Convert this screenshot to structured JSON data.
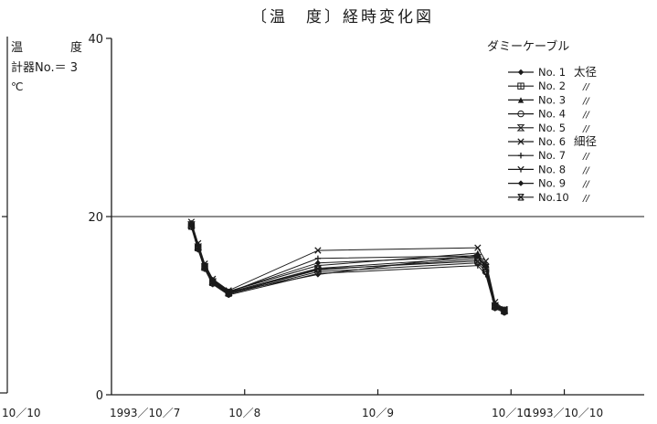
{
  "chart_data": {
    "type": "line",
    "title": "〔温　度〕経時変化図",
    "left_panel": {
      "label_lines": [
        "温　　　　度",
        "計器No.＝ 3",
        "℃"
      ],
      "bottom_tick": "10／10"
    },
    "yticks": [
      "40",
      "20",
      "0"
    ],
    "ylim": [
      0,
      40
    ],
    "x_tick_labels": [
      "1993／10／7",
      "10／8",
      "10／9",
      "10／10",
      "1993／10／10"
    ],
    "x_tick_values": [
      0,
      1,
      2,
      3,
      3.4
    ],
    "xlim": [
      0,
      4
    ],
    "reference_line_y": 20,
    "legend": {
      "title": "ダミーケーブル",
      "placement": "top-right",
      "entries": [
        {
          "name": "No. 1",
          "note": "太径",
          "marker": "diamond"
        },
        {
          "name": "No. 2",
          "note": "//",
          "marker": "square-plus"
        },
        {
          "name": "No. 3",
          "note": "//",
          "marker": "triangle"
        },
        {
          "name": "No. 4",
          "note": "//",
          "marker": "circle"
        },
        {
          "name": "No. 5",
          "note": "//",
          "marker": "hourglass"
        },
        {
          "name": "No. 6",
          "note": "細径",
          "marker": "x"
        },
        {
          "name": "No. 7",
          "note": "//",
          "marker": "plus"
        },
        {
          "name": "No. 8",
          "note": "//",
          "marker": "y"
        },
        {
          "name": "No. 9",
          "note": "//",
          "marker": "diamond"
        },
        {
          "name": "No.10",
          "note": "//",
          "marker": "x-bar"
        }
      ]
    },
    "series": [
      {
        "name": "No. 1",
        "x": [
          0.6,
          0.65,
          0.7,
          0.76,
          0.88,
          1.55,
          2.75,
          2.81,
          2.88,
          2.95
        ],
        "y": [
          19.2,
          16.8,
          14.5,
          12.8,
          11.5,
          13.5,
          15.7,
          14.2,
          10.0,
          9.5
        ]
      },
      {
        "name": "No. 2",
        "x": [
          0.6,
          0.65,
          0.7,
          0.76,
          0.88,
          1.55,
          2.75,
          2.81,
          2.88,
          2.95
        ],
        "y": [
          19.0,
          16.5,
          14.3,
          12.6,
          11.4,
          14.0,
          15.2,
          14.0,
          9.9,
          9.4
        ]
      },
      {
        "name": "No. 3",
        "x": [
          0.6,
          0.65,
          0.7,
          0.76,
          0.88,
          1.55,
          2.75,
          2.81,
          2.88,
          2.95
        ],
        "y": [
          19.3,
          16.9,
          14.6,
          12.9,
          11.6,
          14.5,
          15.9,
          14.6,
          10.2,
          9.6
        ]
      },
      {
        "name": "No. 4",
        "x": [
          0.6,
          0.65,
          0.7,
          0.76,
          0.88,
          1.55,
          2.75,
          2.81,
          2.88,
          2.95
        ],
        "y": [
          18.9,
          16.4,
          14.2,
          12.5,
          11.3,
          13.8,
          14.8,
          13.8,
          9.8,
          9.3
        ]
      },
      {
        "name": "No. 5",
        "x": [
          0.6,
          0.65,
          0.7,
          0.76,
          0.88,
          1.55,
          2.75,
          2.81,
          2.88,
          2.95
        ],
        "y": [
          19.1,
          16.6,
          14.4,
          12.7,
          11.5,
          14.2,
          15.4,
          14.3,
          10.0,
          9.5
        ]
      },
      {
        "name": "No. 6",
        "x": [
          0.6,
          0.65,
          0.7,
          0.76,
          0.88,
          1.55,
          2.75,
          2.81,
          2.88,
          2.95
        ],
        "y": [
          19.4,
          17.0,
          14.7,
          13.0,
          11.7,
          16.2,
          16.5,
          15.0,
          10.4,
          9.6
        ]
      },
      {
        "name": "No. 7",
        "x": [
          0.6,
          0.65,
          0.7,
          0.76,
          0.88,
          1.55,
          2.75,
          2.81,
          2.88,
          2.95
        ],
        "y": [
          19.0,
          16.7,
          14.4,
          12.8,
          11.5,
          15.3,
          15.6,
          14.4,
          10.1,
          9.5
        ]
      },
      {
        "name": "No. 8",
        "x": [
          0.6,
          0.65,
          0.7,
          0.76,
          0.88,
          1.55,
          2.75,
          2.81,
          2.88,
          2.95
        ],
        "y": [
          18.8,
          16.3,
          14.1,
          12.4,
          11.2,
          13.6,
          14.5,
          13.5,
          9.7,
          9.2
        ]
      },
      {
        "name": "No. 9",
        "x": [
          0.6,
          0.65,
          0.7,
          0.76,
          0.88,
          1.55,
          2.75,
          2.81,
          2.88,
          2.95
        ],
        "y": [
          19.2,
          16.8,
          14.6,
          12.9,
          11.6,
          14.8,
          15.5,
          14.5,
          10.1,
          9.5
        ]
      },
      {
        "name": "No.10",
        "x": [
          0.6,
          0.65,
          0.7,
          0.76,
          0.88,
          1.55,
          2.75,
          2.81,
          2.88,
          2.95
        ],
        "y": [
          18.9,
          16.5,
          14.3,
          12.6,
          11.4,
          14.1,
          15.0,
          14.1,
          9.9,
          9.4
        ]
      }
    ]
  }
}
